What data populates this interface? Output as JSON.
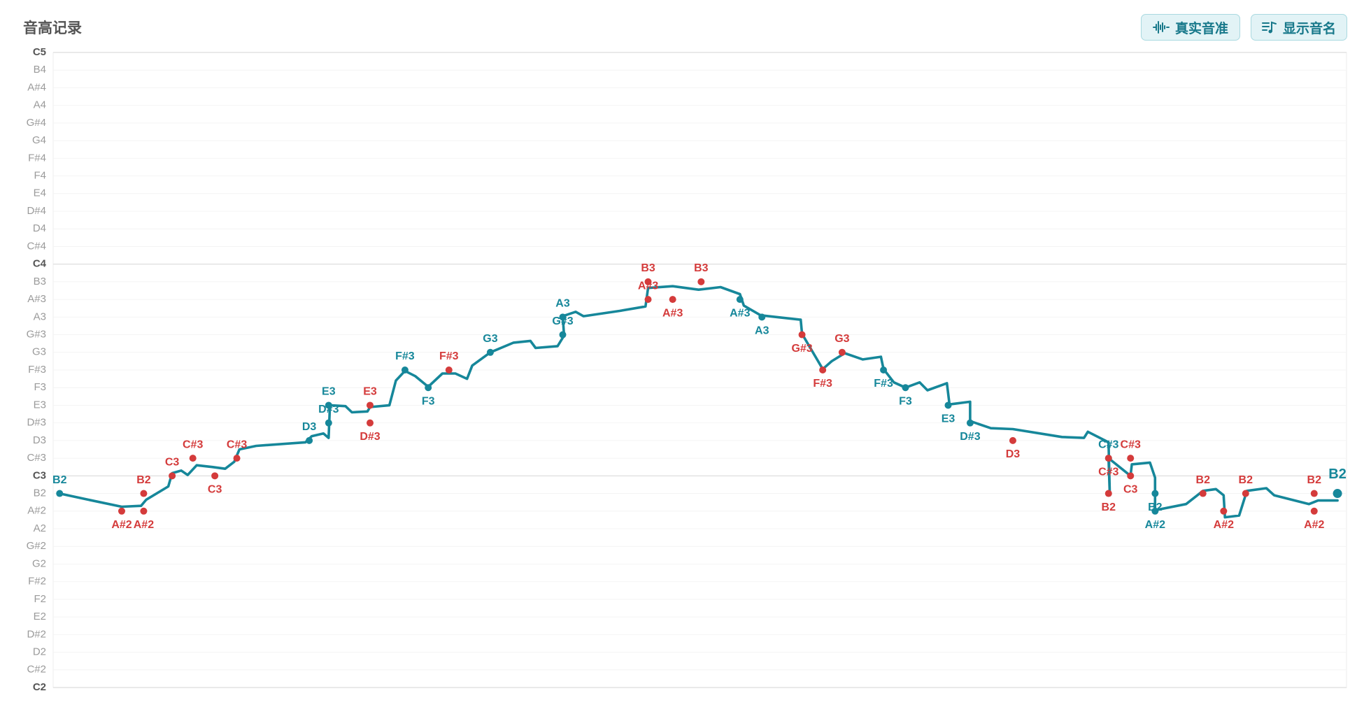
{
  "chart_data": {
    "type": "line",
    "title": "音高记录",
    "xlim": [
      0,
      100
    ],
    "ylim": [
      36,
      72
    ],
    "yticks": [
      {
        "value": 36,
        "label": "C2"
      },
      {
        "value": 37,
        "label": "C#2"
      },
      {
        "value": 38,
        "label": "D2"
      },
      {
        "value": 39,
        "label": "D#2"
      },
      {
        "value": 40,
        "label": "E2"
      },
      {
        "value": 41,
        "label": "F2"
      },
      {
        "value": 42,
        "label": "F#2"
      },
      {
        "value": 43,
        "label": "G2"
      },
      {
        "value": 44,
        "label": "G#2"
      },
      {
        "value": 45,
        "label": "A2"
      },
      {
        "value": 46,
        "label": "A#2"
      },
      {
        "value": 47,
        "label": "B2"
      },
      {
        "value": 48,
        "label": "C3"
      },
      {
        "value": 49,
        "label": "C#3"
      },
      {
        "value": 50,
        "label": "D3"
      },
      {
        "value": 51,
        "label": "D#3"
      },
      {
        "value": 52,
        "label": "E3"
      },
      {
        "value": 53,
        "label": "F3"
      },
      {
        "value": 54,
        "label": "F#3"
      },
      {
        "value": 55,
        "label": "G3"
      },
      {
        "value": 56,
        "label": "G#3"
      },
      {
        "value": 57,
        "label": "A3"
      },
      {
        "value": 58,
        "label": "A#3"
      },
      {
        "value": 59,
        "label": "B3"
      },
      {
        "value": 60,
        "label": "C4"
      },
      {
        "value": 61,
        "label": "C#4"
      },
      {
        "value": 62,
        "label": "D4"
      },
      {
        "value": 63,
        "label": "D#4"
      },
      {
        "value": 64,
        "label": "E4"
      },
      {
        "value": 65,
        "label": "F4"
      },
      {
        "value": 66,
        "label": "F#4"
      },
      {
        "value": 67,
        "label": "G4"
      },
      {
        "value": 68,
        "label": "G#4"
      },
      {
        "value": 69,
        "label": "A4"
      },
      {
        "value": 70,
        "label": "A#4"
      },
      {
        "value": 71,
        "label": "B4"
      },
      {
        "value": 72,
        "label": "C5"
      }
    ],
    "grid": true,
    "pitch": {
      "color": "#16879a",
      "x": [
        0.5,
        2.7,
        5.3,
        6.8,
        7.2,
        8.9,
        9.2,
        9.9,
        10.4,
        11.1,
        12.3,
        13.3,
        14.0,
        14.4,
        15.7,
        19.5,
        20.0,
        20.9,
        21.3,
        21.4,
        22.6,
        23.1,
        24.3,
        24.5,
        26.0,
        26.5,
        27.2,
        28.0,
        29.0,
        30.1,
        31.1,
        32.0,
        32.4,
        33.8,
        35.6,
        36.9,
        37.3,
        39.0,
        39.5,
        39.4,
        40.4,
        41.0,
        43.8,
        45.8,
        46.0,
        47.9,
        49.9,
        51.6,
        53.1,
        53.4,
        54.7,
        57.8,
        57.9,
        59.5,
        60.2,
        61.2,
        62.6,
        64.0,
        64.2,
        65.0,
        65.9,
        67.0,
        67.6,
        69.1,
        69.3,
        70.9,
        70.9,
        72.5,
        74.2,
        78.0,
        79.7,
        80.0,
        81.6,
        81.7,
        81.6,
        83.3,
        83.4,
        84.8,
        85.2,
        85.2,
        87.6,
        88.9,
        89.9,
        90.5,
        90.6,
        91.7,
        92.3,
        93.8,
        94.4,
        97.1,
        97.8,
        99.3
      ],
      "y": [
        47,
        46.65,
        46.25,
        46.3,
        46.65,
        47.4,
        48.15,
        48.3,
        48.05,
        48.6,
        48.5,
        48.4,
        48.8,
        49.5,
        49.7,
        49.9,
        50.25,
        50.4,
        50.15,
        52.0,
        51.95,
        51.6,
        51.65,
        51.9,
        52.0,
        53.4,
        53.95,
        53.65,
        53.05,
        53.8,
        53.8,
        53.5,
        54.25,
        55.0,
        55.55,
        55.65,
        55.25,
        55.35,
        55.95,
        57.05,
        57.3,
        57.05,
        57.35,
        57.6,
        58.65,
        58.75,
        58.55,
        58.7,
        58.3,
        57.65,
        57.1,
        56.85,
        56.05,
        54.05,
        54.5,
        54.95,
        54.6,
        54.75,
        54.05,
        53.3,
        53.0,
        53.3,
        52.85,
        53.25,
        52.05,
        52.2,
        51.1,
        50.7,
        50.65,
        50.2,
        50.15,
        50.5,
        49.9,
        46.9,
        49.0,
        48.0,
        48.65,
        48.75,
        47.9,
        46.05,
        46.4,
        47.15,
        47.25,
        46.9,
        45.65,
        45.75,
        47.15,
        47.3,
        46.9,
        46.4,
        46.6,
        46.6
      ]
    },
    "notes": {
      "x": [
        0.5,
        5.3,
        7.0,
        7.0,
        9.2,
        10.8,
        12.5,
        14.2,
        19.8,
        21.3,
        21.3,
        24.5,
        24.5,
        27.2,
        29.0,
        30.6,
        33.8,
        39.4,
        39.4,
        46.0,
        46.0,
        47.9,
        50.1,
        53.1,
        54.8,
        57.9,
        59.5,
        61.0,
        64.2,
        65.9,
        69.2,
        70.9,
        74.2,
        81.6,
        81.6,
        81.6,
        83.3,
        83.3,
        85.2,
        85.2,
        88.9,
        90.5,
        92.2,
        97.5,
        97.5,
        99.3
      ],
      "y": [
        47,
        46,
        46,
        47,
        48,
        49,
        48,
        49,
        50,
        51,
        52,
        52,
        51,
        54,
        53,
        54,
        55,
        56,
        57,
        58,
        59,
        58,
        59,
        58,
        57,
        56,
        54,
        55,
        54,
        53,
        52,
        51,
        50,
        49,
        49,
        47,
        49,
        48,
        47,
        46,
        47,
        46,
        47,
        47,
        46,
        47
      ],
      "value_labels": [
        "B2",
        "A#2",
        "A#2",
        "B2",
        "C3",
        "C#3",
        "C3",
        "C#3",
        "D3",
        "D#3",
        "E3",
        "E3",
        "D#3",
        "F#3",
        "F3",
        "F#3",
        "G3",
        "G#3",
        "A3",
        "A#3",
        "B3",
        "A#3",
        "B3",
        "A#3",
        "A3",
        "G#3",
        "F#3",
        "G3",
        "F#3",
        "F3",
        "E3",
        "D#3",
        "D3",
        "C#3",
        "C#3",
        "B2",
        "C#3",
        "C3",
        "B2",
        "A#2",
        "B2",
        "A#2",
        "B2",
        "B2",
        "A#2",
        "B2"
      ],
      "colors": [
        "#16879a",
        "#d43b3b",
        "#d43b3b",
        "#d43b3b",
        "#d43b3b",
        "#d43b3b",
        "#d43b3b",
        "#d43b3b",
        "#16879a",
        "#16879a",
        "#16879a",
        "#d43b3b",
        "#d43b3b",
        "#16879a",
        "#16879a",
        "#d43b3b",
        "#16879a",
        "#16879a",
        "#16879a",
        "#d43b3b",
        "#d43b3b",
        "#d43b3b",
        "#d43b3b",
        "#16879a",
        "#16879a",
        "#d43b3b",
        "#d43b3b",
        "#d43b3b",
        "#16879a",
        "#16879a",
        "#16879a",
        "#16879a",
        "#d43b3b",
        "#16879a",
        "#d43b3b",
        "#d43b3b",
        "#d43b3b",
        "#d43b3b",
        "#16879a",
        "#16879a",
        "#d43b3b",
        "#d43b3b",
        "#d43b3b",
        "#d43b3b",
        "#d43b3b",
        "#16879a"
      ],
      "label_side": [
        "above",
        "below",
        "below",
        "above",
        "above",
        "above",
        "below",
        "above",
        "above",
        "above",
        "above",
        "above",
        "below",
        "above",
        "below",
        "above",
        "above",
        "above",
        "above",
        "above",
        "above",
        "below",
        "above",
        "below",
        "below",
        "below",
        "below",
        "above",
        "below",
        "below",
        "below",
        "below",
        "below",
        "above",
        "below",
        "below",
        "above",
        "below",
        "below",
        "below",
        "above",
        "below",
        "above",
        "above",
        "below",
        "above"
      ],
      "highlight": 45
    }
  },
  "buttons": [
    "真实音准",
    "显示音名"
  ]
}
